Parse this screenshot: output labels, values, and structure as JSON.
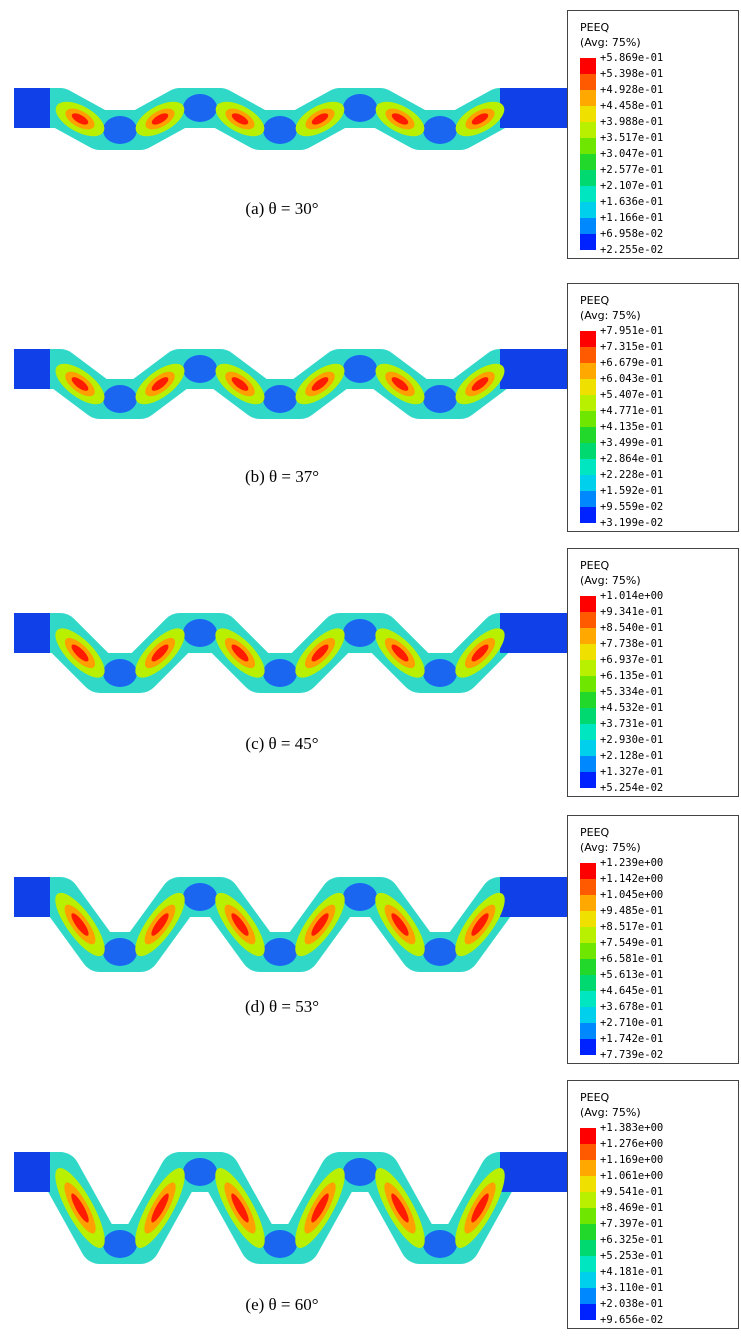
{
  "panels": [
    {
      "caption": "(a) θ = 30°",
      "legend": {
        "title": "PEEQ",
        "subtitle": "(Avg: 75%)",
        "values": [
          "+5.869e-01",
          "+5.398e-01",
          "+4.928e-01",
          "+4.458e-01",
          "+3.988e-01",
          "+3.517e-01",
          "+3.047e-01",
          "+2.577e-01",
          "+2.107e-01",
          "+1.636e-01",
          "+1.166e-01",
          "+6.958e-02",
          "+2.255e-02"
        ]
      }
    },
    {
      "caption": "(b) θ = 37°",
      "legend": {
        "title": "PEEQ",
        "subtitle": "(Avg: 75%)",
        "values": [
          "+7.951e-01",
          "+7.315e-01",
          "+6.679e-01",
          "+6.043e-01",
          "+5.407e-01",
          "+4.771e-01",
          "+4.135e-01",
          "+3.499e-01",
          "+2.864e-01",
          "+2.228e-01",
          "+1.592e-01",
          "+9.559e-02",
          "+3.199e-02"
        ]
      }
    },
    {
      "caption": "(c) θ = 45°",
      "legend": {
        "title": "PEEQ",
        "subtitle": "(Avg: 75%)",
        "values": [
          "+1.014e+00",
          "+9.341e-01",
          "+8.540e-01",
          "+7.738e-01",
          "+6.937e-01",
          "+6.135e-01",
          "+5.334e-01",
          "+4.532e-01",
          "+3.731e-01",
          "+2.930e-01",
          "+2.128e-01",
          "+1.327e-01",
          "+5.254e-02"
        ]
      }
    },
    {
      "caption": "(d) θ = 53°",
      "legend": {
        "title": "PEEQ",
        "subtitle": "(Avg: 75%)",
        "values": [
          "+1.239e+00",
          "+1.142e+00",
          "+1.045e+00",
          "+9.485e-01",
          "+8.517e-01",
          "+7.549e-01",
          "+6.581e-01",
          "+5.613e-01",
          "+4.645e-01",
          "+3.678e-01",
          "+2.710e-01",
          "+1.742e-01",
          "+7.739e-02"
        ]
      }
    },
    {
      "caption": "(e) θ = 60°",
      "legend": {
        "title": "PEEQ",
        "subtitle": "(Avg: 75%)",
        "values": [
          "+1.383e+00",
          "+1.276e+00",
          "+1.169e+00",
          "+1.061e+00",
          "+9.541e-01",
          "+8.469e-01",
          "+7.397e-01",
          "+6.325e-01",
          "+5.253e-01",
          "+4.181e-01",
          "+3.110e-01",
          "+2.038e-01",
          "+9.656e-02"
        ]
      }
    }
  ]
}
